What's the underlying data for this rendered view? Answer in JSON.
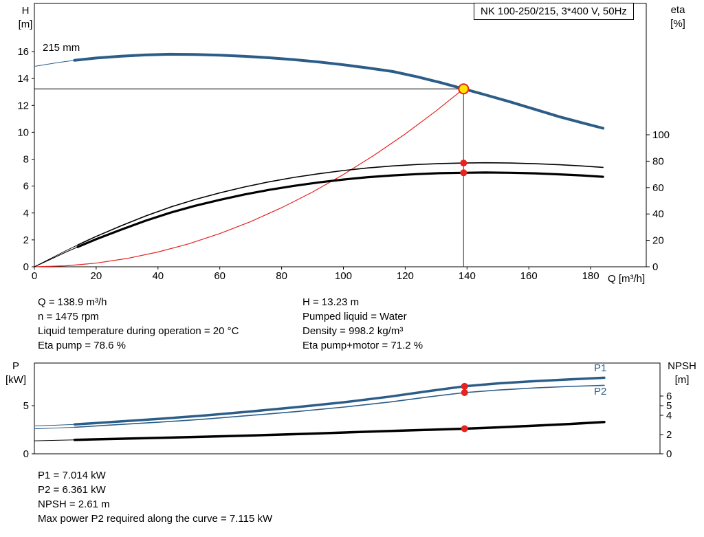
{
  "ui": {
    "title_box": "NK 100-250/215, 3*400 V, 50Hz",
    "top_chart": {
      "y_left_1": "H",
      "y_left_2": "[m]",
      "y_right_1": "eta",
      "y_right_2": "[%]",
      "x_label": "Q [m³/h]",
      "impeller_label": "215 mm"
    },
    "bottom_chart": {
      "y_left_1": "P",
      "y_left_2": "[kW]",
      "y_right_1": "NPSH",
      "y_right_2": "[m]",
      "p1_label": "P1",
      "p2_label": "P2"
    },
    "info_left": [
      "Q = 138.9 m³/h",
      "n = 1475 rpm",
      "Liquid temperature during operation = 20 °C",
      "Eta pump = 78.6 %"
    ],
    "info_right": [
      "H = 13.23 m",
      "Pumped liquid = Water",
      "Density = 998.2 kg/m³",
      "Eta pump+motor = 71.2 %"
    ],
    "footer": [
      "P1 = 7.014 kW",
      "P2 = 6.361 kW",
      "NPSH = 2.61 m",
      "Max power P2 required along the curve = 7.115 kW"
    ]
  },
  "colors": {
    "curve_blue": "#2b5d88",
    "curve_black": "#000000",
    "curve_red": "#e5231f",
    "duty_yellow": "#ffe400",
    "ref_line": "#3a3a3a"
  },
  "chart_data": [
    {
      "type": "line",
      "title": "NK 100-250/215, 3*400 V, 50Hz",
      "xlabel": "Q [m³/h]",
      "ylabel_left": "H [m]",
      "ylabel_right": "eta [%]",
      "grid": false,
      "x": {
        "min": 0,
        "max": 198,
        "ticks": [
          0,
          20,
          40,
          60,
          80,
          100,
          120,
          140,
          160,
          180
        ]
      },
      "y_left": {
        "min": 0,
        "max": 19.58,
        "ticks": [
          0,
          2,
          4,
          6,
          8,
          10,
          12,
          14,
          16
        ]
      },
      "y_right": {
        "min": 0,
        "max": 199.5,
        "ticks": [
          0,
          20,
          40,
          60,
          80,
          100
        ]
      },
      "duty_point": {
        "q_m3h": 138.9,
        "h_m": 13.23,
        "eta_pump_pct": 78.6,
        "eta_pump_motor_pct": 71.2
      },
      "series": [
        {
          "name": "duty-head-line",
          "axis": "left",
          "color": "#000000",
          "width": 1,
          "points": [
            [
              0,
              13.23
            ],
            [
              138.9,
              13.23
            ]
          ]
        },
        {
          "name": "duty-flow-line",
          "axis": "left",
          "color": "#3a3a3a",
          "width": 1,
          "points": [
            [
              138.9,
              0
            ],
            [
              138.9,
              13.23
            ]
          ]
        },
        {
          "name": "system-curve",
          "axis": "left",
          "color": "#e5231f",
          "width": 1.2,
          "points": [
            [
              0,
              0
            ],
            [
              10,
              0.07
            ],
            [
              20,
              0.27
            ],
            [
              30,
              0.62
            ],
            [
              40,
              1.1
            ],
            [
              50,
              1.71
            ],
            [
              60,
              2.47
            ],
            [
              70,
              3.36
            ],
            [
              80,
              4.39
            ],
            [
              90,
              5.55
            ],
            [
              100,
              6.86
            ],
            [
              110,
              8.3
            ],
            [
              120,
              9.87
            ],
            [
              130,
              11.59
            ],
            [
              138.9,
              13.23
            ]
          ]
        },
        {
          "name": "head-curve-lead",
          "axis": "left",
          "color": "#2b5d88",
          "width": 1,
          "points": [
            [
              0,
              14.9
            ],
            [
              4,
              15.05
            ],
            [
              8,
              15.2
            ],
            [
              13,
              15.35
            ]
          ]
        },
        {
          "name": "head-curve-215mm",
          "axis": "left",
          "color": "#2b5d88",
          "width": 4,
          "points": [
            [
              13,
              15.35
            ],
            [
              20,
              15.52
            ],
            [
              28,
              15.66
            ],
            [
              36,
              15.75
            ],
            [
              44,
              15.8
            ],
            [
              52,
              15.78
            ],
            [
              60,
              15.73
            ],
            [
              68,
              15.65
            ],
            [
              76,
              15.54
            ],
            [
              84,
              15.4
            ],
            [
              92,
              15.23
            ],
            [
              100,
              15.02
            ],
            [
              108,
              14.78
            ],
            [
              116,
              14.52
            ],
            [
              124,
              14.12
            ],
            [
              131,
              13.72
            ],
            [
              138.9,
              13.23
            ],
            [
              146,
              12.78
            ],
            [
              154,
              12.26
            ],
            [
              162,
              11.7
            ],
            [
              170,
              11.15
            ],
            [
              177,
              10.72
            ],
            [
              184,
              10.3
            ]
          ]
        },
        {
          "name": "eta-pump-lead",
          "axis": "right",
          "color": "#000000",
          "width": 0.9,
          "points": [
            [
              0,
              0
            ],
            [
              5,
              6
            ],
            [
              10,
              12
            ],
            [
              14,
              16.5
            ]
          ]
        },
        {
          "name": "eta-pump-curve",
          "axis": "right",
          "color": "#000000",
          "width": 1.6,
          "points": [
            [
              14,
              16.5
            ],
            [
              20,
              23
            ],
            [
              28,
              31
            ],
            [
              36,
              38.5
            ],
            [
              44,
              45.2
            ],
            [
              52,
              51
            ],
            [
              60,
              56
            ],
            [
              68,
              60.5
            ],
            [
              76,
              64.4
            ],
            [
              84,
              67.7
            ],
            [
              92,
              70.5
            ],
            [
              100,
              72.9
            ],
            [
              108,
              74.9
            ],
            [
              116,
              76.4
            ],
            [
              124,
              77.5
            ],
            [
              131,
              78.2
            ],
            [
              138.9,
              78.6
            ],
            [
              146,
              78.8
            ],
            [
              154,
              78.6
            ],
            [
              162,
              78.1
            ],
            [
              170,
              77.3
            ],
            [
              177,
              76.4
            ],
            [
              184,
              75.3
            ]
          ]
        },
        {
          "name": "eta-pump-motor-lead",
          "axis": "right",
          "color": "#000000",
          "width": 1.1,
          "points": [
            [
              0,
              0
            ],
            [
              5,
              5.4
            ],
            [
              10,
              10.9
            ],
            [
              14,
              15
            ]
          ]
        },
        {
          "name": "eta-pump-motor-curve",
          "axis": "right",
          "color": "#000000",
          "width": 3.2,
          "points": [
            [
              14,
              15
            ],
            [
              20,
              20.9
            ],
            [
              28,
              28.1
            ],
            [
              36,
              34.9
            ],
            [
              44,
              41
            ],
            [
              52,
              46.2
            ],
            [
              60,
              50.7
            ],
            [
              68,
              54.8
            ],
            [
              76,
              58.3
            ],
            [
              84,
              61.3
            ],
            [
              92,
              63.9
            ],
            [
              100,
              66.1
            ],
            [
              108,
              67.9
            ],
            [
              116,
              69.2
            ],
            [
              124,
              70.2
            ],
            [
              131,
              70.9
            ],
            [
              138.9,
              71.2
            ],
            [
              146,
              71.4
            ],
            [
              154,
              71.2
            ],
            [
              162,
              70.8
            ],
            [
              170,
              70
            ],
            [
              177,
              69.2
            ],
            [
              184,
              68.2
            ]
          ]
        }
      ],
      "markers": [
        {
          "name": "duty-point",
          "x": 138.9,
          "y": 13.23,
          "axis": "left",
          "r": 7,
          "fill": "#ffe400",
          "stroke": "#e5231f",
          "stroke_width": 2
        },
        {
          "name": "eta-pump-point",
          "x": 138.9,
          "y": 78.6,
          "axis": "right",
          "r": 5,
          "fill": "#e5231f"
        },
        {
          "name": "eta-pump-motor-point",
          "x": 138.9,
          "y": 71.2,
          "axis": "right",
          "r": 5,
          "fill": "#e5231f"
        }
      ]
    },
    {
      "type": "line",
      "title": "",
      "xlabel": "",
      "ylabel_left": "P [kW]",
      "ylabel_right": "NPSH [m]",
      "grid": false,
      "x": {
        "min": 0,
        "max": 202,
        "ticks": []
      },
      "y_left": {
        "min": 0,
        "max": 9.43,
        "ticks": [
          0,
          5
        ]
      },
      "y_right": {
        "min": 0,
        "max": 9.43,
        "ticks": [
          0,
          2,
          4,
          5,
          6
        ]
      },
      "duty_values": {
        "p1_kw": 7.014,
        "p2_kw": 6.361,
        "npsh_m": 2.61,
        "max_p2_along_curve_kw": 7.115
      },
      "series": [
        {
          "name": "p1-curve-lead",
          "axis": "left",
          "color": "#2b5d88",
          "width": 1,
          "points": [
            [
              0,
              2.9
            ],
            [
              7,
              2.97
            ],
            [
              13,
              3.05
            ]
          ]
        },
        {
          "name": "p1-curve",
          "axis": "left",
          "color": "#2b5d88",
          "width": 3.5,
          "points": [
            [
              13,
              3.05
            ],
            [
              25,
              3.3
            ],
            [
              40,
              3.62
            ],
            [
              55,
              3.98
            ],
            [
              70,
              4.4
            ],
            [
              85,
              4.86
            ],
            [
              100,
              5.36
            ],
            [
              115,
              5.95
            ],
            [
              127,
              6.5
            ],
            [
              138.9,
              7.014
            ],
            [
              150,
              7.32
            ],
            [
              162,
              7.56
            ],
            [
              173,
              7.74
            ],
            [
              184,
              7.9
            ]
          ]
        },
        {
          "name": "p2-curve-lead",
          "axis": "left",
          "color": "#2b5d88",
          "width": 1,
          "points": [
            [
              0,
              2.6
            ],
            [
              7,
              2.68
            ],
            [
              13,
              2.76
            ]
          ]
        },
        {
          "name": "p2-curve",
          "axis": "left",
          "color": "#2b5d88",
          "width": 1.6,
          "points": [
            [
              13,
              2.76
            ],
            [
              25,
              2.99
            ],
            [
              40,
              3.28
            ],
            [
              55,
              3.6
            ],
            [
              70,
              3.99
            ],
            [
              85,
              4.4
            ],
            [
              100,
              4.86
            ],
            [
              115,
              5.39
            ],
            [
              127,
              5.9
            ],
            [
              138.9,
              6.361
            ],
            [
              150,
              6.63
            ],
            [
              162,
              6.85
            ],
            [
              173,
              7.0
            ],
            [
              184,
              7.115
            ]
          ]
        },
        {
          "name": "npsh-curve-lead",
          "axis": "right",
          "color": "#000000",
          "width": 1,
          "points": [
            [
              0,
              1.35
            ],
            [
              7,
              1.4
            ],
            [
              13,
              1.45
            ]
          ]
        },
        {
          "name": "npsh-curve",
          "axis": "right",
          "color": "#000000",
          "width": 3.5,
          "points": [
            [
              13,
              1.45
            ],
            [
              30,
              1.58
            ],
            [
              50,
              1.73
            ],
            [
              70,
              1.9
            ],
            [
              90,
              2.1
            ],
            [
              110,
              2.32
            ],
            [
              125,
              2.47
            ],
            [
              138.9,
              2.61
            ],
            [
              150,
              2.75
            ],
            [
              162,
              2.93
            ],
            [
              173,
              3.1
            ],
            [
              184,
              3.3
            ]
          ]
        }
      ],
      "markers": [
        {
          "name": "p1-point",
          "x": 138.9,
          "y": 7.014,
          "axis": "left",
          "r": 5,
          "fill": "#e5231f"
        },
        {
          "name": "p2-point",
          "x": 138.9,
          "y": 6.361,
          "axis": "left",
          "r": 5,
          "fill": "#e5231f"
        },
        {
          "name": "npsh-point",
          "x": 138.9,
          "y": 2.61,
          "axis": "right",
          "r": 5,
          "fill": "#e5231f"
        }
      ]
    }
  ]
}
